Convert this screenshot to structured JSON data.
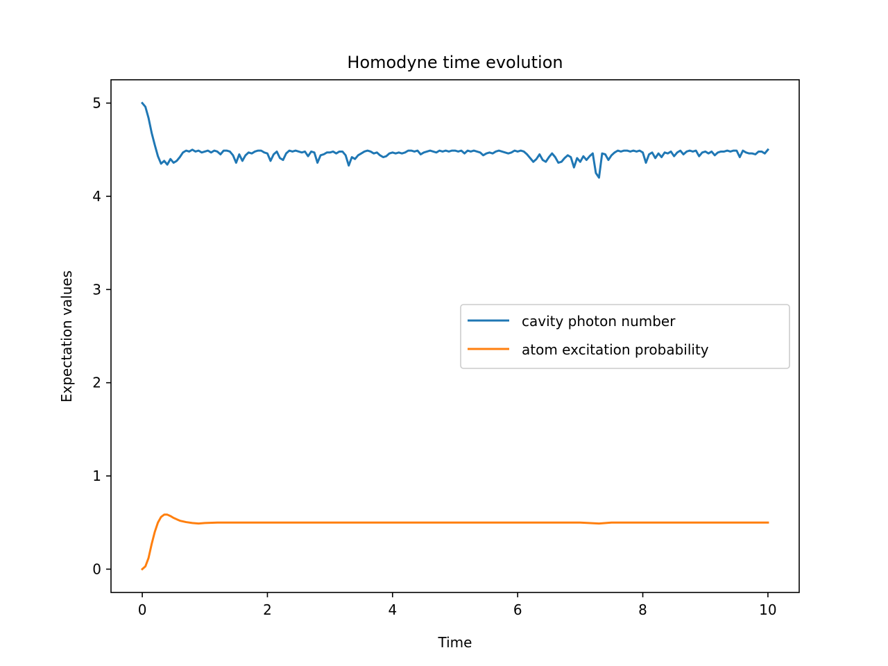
{
  "chart_data": {
    "type": "line",
    "title": "Homodyne time evolution",
    "xlabel": "Time",
    "ylabel": "Expectation values",
    "xlim": [
      -0.5,
      10.5
    ],
    "ylim": [
      -0.25,
      5.25
    ],
    "xticks": [
      0,
      2,
      4,
      6,
      8,
      10
    ],
    "xtick_labels": [
      "0",
      "2",
      "4",
      "6",
      "8",
      "10"
    ],
    "yticks": [
      0,
      1,
      2,
      3,
      4,
      5
    ],
    "ytick_labels": [
      "0",
      "1",
      "2",
      "3",
      "4",
      "5"
    ],
    "grid": false,
    "legend_position": "center-right",
    "series": [
      {
        "name": "cavity photon number",
        "color": "#1f77b4",
        "points": [
          [
            0.0,
            5.0
          ],
          [
            0.05,
            4.96
          ],
          [
            0.1,
            4.84
          ],
          [
            0.15,
            4.68
          ],
          [
            0.2,
            4.55
          ],
          [
            0.25,
            4.43
          ],
          [
            0.3,
            4.35
          ],
          [
            0.35,
            4.38
          ],
          [
            0.4,
            4.34
          ],
          [
            0.45,
            4.4
          ],
          [
            0.5,
            4.36
          ],
          [
            0.55,
            4.38
          ],
          [
            0.6,
            4.42
          ],
          [
            0.65,
            4.47
          ],
          [
            0.7,
            4.49
          ],
          [
            0.75,
            4.48
          ],
          [
            0.8,
            4.5
          ],
          [
            0.85,
            4.48
          ],
          [
            0.9,
            4.49
          ],
          [
            0.95,
            4.47
          ],
          [
            1.0,
            4.48
          ],
          [
            1.05,
            4.49
          ],
          [
            1.1,
            4.47
          ],
          [
            1.15,
            4.49
          ],
          [
            1.2,
            4.48
          ],
          [
            1.25,
            4.45
          ],
          [
            1.3,
            4.49
          ],
          [
            1.35,
            4.49
          ],
          [
            1.4,
            4.48
          ],
          [
            1.45,
            4.44
          ],
          [
            1.5,
            4.36
          ],
          [
            1.55,
            4.45
          ],
          [
            1.6,
            4.38
          ],
          [
            1.65,
            4.44
          ],
          [
            1.7,
            4.47
          ],
          [
            1.75,
            4.46
          ],
          [
            1.8,
            4.48
          ],
          [
            1.85,
            4.49
          ],
          [
            1.9,
            4.49
          ],
          [
            1.95,
            4.47
          ],
          [
            2.0,
            4.46
          ],
          [
            2.05,
            4.38
          ],
          [
            2.1,
            4.45
          ],
          [
            2.15,
            4.48
          ],
          [
            2.2,
            4.41
          ],
          [
            2.25,
            4.39
          ],
          [
            2.3,
            4.46
          ],
          [
            2.35,
            4.49
          ],
          [
            2.4,
            4.48
          ],
          [
            2.45,
            4.49
          ],
          [
            2.5,
            4.48
          ],
          [
            2.55,
            4.47
          ],
          [
            2.6,
            4.48
          ],
          [
            2.65,
            4.43
          ],
          [
            2.7,
            4.48
          ],
          [
            2.75,
            4.47
          ],
          [
            2.8,
            4.36
          ],
          [
            2.85,
            4.44
          ],
          [
            2.9,
            4.45
          ],
          [
            2.95,
            4.47
          ],
          [
            3.0,
            4.47
          ],
          [
            3.05,
            4.48
          ],
          [
            3.1,
            4.46
          ],
          [
            3.15,
            4.48
          ],
          [
            3.2,
            4.48
          ],
          [
            3.25,
            4.44
          ],
          [
            3.3,
            4.33
          ],
          [
            3.35,
            4.42
          ],
          [
            3.4,
            4.4
          ],
          [
            3.45,
            4.44
          ],
          [
            3.5,
            4.46
          ],
          [
            3.55,
            4.48
          ],
          [
            3.6,
            4.49
          ],
          [
            3.65,
            4.48
          ],
          [
            3.7,
            4.46
          ],
          [
            3.75,
            4.47
          ],
          [
            3.8,
            4.44
          ],
          [
            3.85,
            4.42
          ],
          [
            3.9,
            4.43
          ],
          [
            3.95,
            4.46
          ],
          [
            4.0,
            4.47
          ],
          [
            4.05,
            4.46
          ],
          [
            4.1,
            4.47
          ],
          [
            4.15,
            4.46
          ],
          [
            4.2,
            4.47
          ],
          [
            4.25,
            4.49
          ],
          [
            4.3,
            4.49
          ],
          [
            4.35,
            4.48
          ],
          [
            4.4,
            4.49
          ],
          [
            4.45,
            4.45
          ],
          [
            4.5,
            4.47
          ],
          [
            4.55,
            4.48
          ],
          [
            4.6,
            4.49
          ],
          [
            4.65,
            4.48
          ],
          [
            4.7,
            4.47
          ],
          [
            4.75,
            4.49
          ],
          [
            4.8,
            4.48
          ],
          [
            4.85,
            4.49
          ],
          [
            4.9,
            4.48
          ],
          [
            4.95,
            4.49
          ],
          [
            5.0,
            4.49
          ],
          [
            5.05,
            4.48
          ],
          [
            5.1,
            4.49
          ],
          [
            5.15,
            4.46
          ],
          [
            5.2,
            4.49
          ],
          [
            5.25,
            4.48
          ],
          [
            5.3,
            4.49
          ],
          [
            5.35,
            4.48
          ],
          [
            5.4,
            4.47
          ],
          [
            5.45,
            4.44
          ],
          [
            5.5,
            4.46
          ],
          [
            5.55,
            4.47
          ],
          [
            5.6,
            4.46
          ],
          [
            5.65,
            4.48
          ],
          [
            5.7,
            4.49
          ],
          [
            5.75,
            4.48
          ],
          [
            5.8,
            4.47
          ],
          [
            5.85,
            4.46
          ],
          [
            5.9,
            4.47
          ],
          [
            5.95,
            4.49
          ],
          [
            6.0,
            4.48
          ],
          [
            6.05,
            4.49
          ],
          [
            6.1,
            4.48
          ],
          [
            6.15,
            4.45
          ],
          [
            6.2,
            4.41
          ],
          [
            6.25,
            4.37
          ],
          [
            6.3,
            4.4
          ],
          [
            6.35,
            4.45
          ],
          [
            6.4,
            4.39
          ],
          [
            6.45,
            4.37
          ],
          [
            6.5,
            4.42
          ],
          [
            6.55,
            4.46
          ],
          [
            6.6,
            4.42
          ],
          [
            6.65,
            4.36
          ],
          [
            6.7,
            4.37
          ],
          [
            6.75,
            4.41
          ],
          [
            6.8,
            4.44
          ],
          [
            6.85,
            4.42
          ],
          [
            6.9,
            4.31
          ],
          [
            6.95,
            4.41
          ],
          [
            7.0,
            4.37
          ],
          [
            7.05,
            4.43
          ],
          [
            7.1,
            4.39
          ],
          [
            7.15,
            4.43
          ],
          [
            7.2,
            4.46
          ],
          [
            7.25,
            4.25
          ],
          [
            7.3,
            4.2
          ],
          [
            7.35,
            4.46
          ],
          [
            7.4,
            4.45
          ],
          [
            7.45,
            4.39
          ],
          [
            7.5,
            4.44
          ],
          [
            7.55,
            4.47
          ],
          [
            7.6,
            4.49
          ],
          [
            7.65,
            4.48
          ],
          [
            7.7,
            4.49
          ],
          [
            7.75,
            4.49
          ],
          [
            7.8,
            4.48
          ],
          [
            7.85,
            4.49
          ],
          [
            7.9,
            4.48
          ],
          [
            7.95,
            4.49
          ],
          [
            8.0,
            4.47
          ],
          [
            8.05,
            4.36
          ],
          [
            8.1,
            4.45
          ],
          [
            8.15,
            4.47
          ],
          [
            8.2,
            4.41
          ],
          [
            8.25,
            4.46
          ],
          [
            8.3,
            4.42
          ],
          [
            8.35,
            4.47
          ],
          [
            8.4,
            4.46
          ],
          [
            8.45,
            4.48
          ],
          [
            8.5,
            4.43
          ],
          [
            8.55,
            4.47
          ],
          [
            8.6,
            4.49
          ],
          [
            8.65,
            4.45
          ],
          [
            8.7,
            4.48
          ],
          [
            8.75,
            4.49
          ],
          [
            8.8,
            4.48
          ],
          [
            8.85,
            4.49
          ],
          [
            8.9,
            4.43
          ],
          [
            8.95,
            4.47
          ],
          [
            9.0,
            4.48
          ],
          [
            9.05,
            4.46
          ],
          [
            9.1,
            4.48
          ],
          [
            9.15,
            4.44
          ],
          [
            9.2,
            4.47
          ],
          [
            9.25,
            4.48
          ],
          [
            9.3,
            4.48
          ],
          [
            9.35,
            4.49
          ],
          [
            9.4,
            4.48
          ],
          [
            9.45,
            4.49
          ],
          [
            9.5,
            4.49
          ],
          [
            9.55,
            4.42
          ],
          [
            9.6,
            4.49
          ],
          [
            9.65,
            4.47
          ],
          [
            9.7,
            4.46
          ],
          [
            9.75,
            4.46
          ],
          [
            9.8,
            4.45
          ],
          [
            9.85,
            4.48
          ],
          [
            9.9,
            4.48
          ],
          [
            9.95,
            4.46
          ],
          [
            10.0,
            4.5
          ]
        ]
      },
      {
        "name": "atom excitation probability",
        "color": "#ff7f0e",
        "points": [
          [
            0.0,
            0.0
          ],
          [
            0.05,
            0.03
          ],
          [
            0.1,
            0.12
          ],
          [
            0.15,
            0.27
          ],
          [
            0.2,
            0.4
          ],
          [
            0.25,
            0.5
          ],
          [
            0.3,
            0.56
          ],
          [
            0.35,
            0.585
          ],
          [
            0.4,
            0.585
          ],
          [
            0.45,
            0.57
          ],
          [
            0.5,
            0.55
          ],
          [
            0.6,
            0.52
          ],
          [
            0.7,
            0.505
          ],
          [
            0.8,
            0.495
          ],
          [
            0.9,
            0.49
          ],
          [
            1.0,
            0.495
          ],
          [
            1.2,
            0.5
          ],
          [
            1.5,
            0.5
          ],
          [
            2.0,
            0.5
          ],
          [
            2.5,
            0.5
          ],
          [
            3.0,
            0.5
          ],
          [
            3.5,
            0.5
          ],
          [
            4.0,
            0.5
          ],
          [
            4.5,
            0.5
          ],
          [
            5.0,
            0.5
          ],
          [
            5.5,
            0.5
          ],
          [
            6.0,
            0.5
          ],
          [
            6.5,
            0.5
          ],
          [
            7.0,
            0.5
          ],
          [
            7.3,
            0.49
          ],
          [
            7.5,
            0.5
          ],
          [
            8.0,
            0.5
          ],
          [
            8.5,
            0.5
          ],
          [
            9.0,
            0.5
          ],
          [
            9.5,
            0.5
          ],
          [
            10.0,
            0.5
          ]
        ]
      }
    ]
  }
}
